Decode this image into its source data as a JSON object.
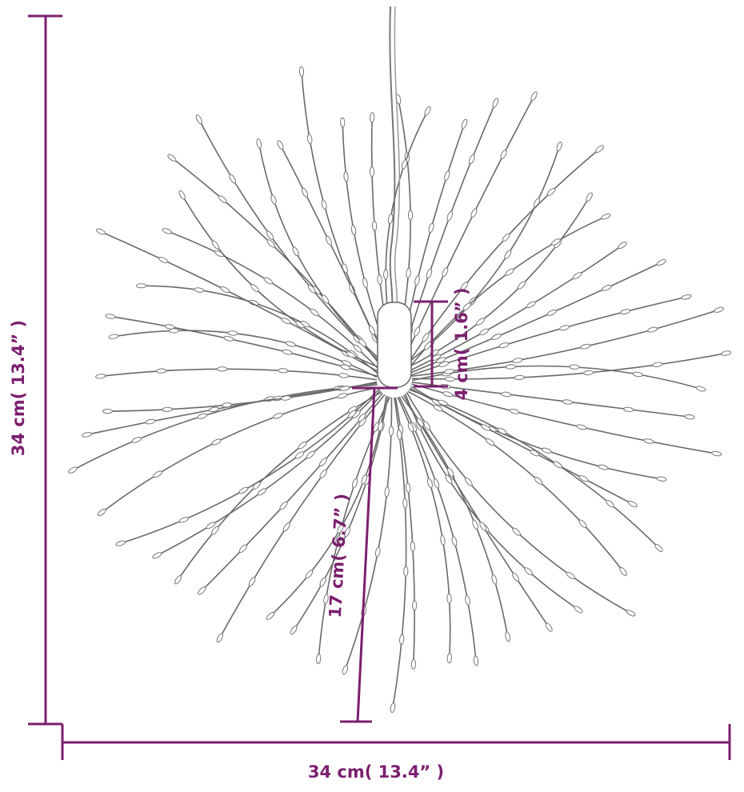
{
  "dimensions": {
    "height": "34 cm( 13.4” )",
    "width": "34 cm( 13.4” )",
    "cap_height": "4 cm( 1.6” )",
    "arm_length": "17 cm( 6.7” )"
  }
}
